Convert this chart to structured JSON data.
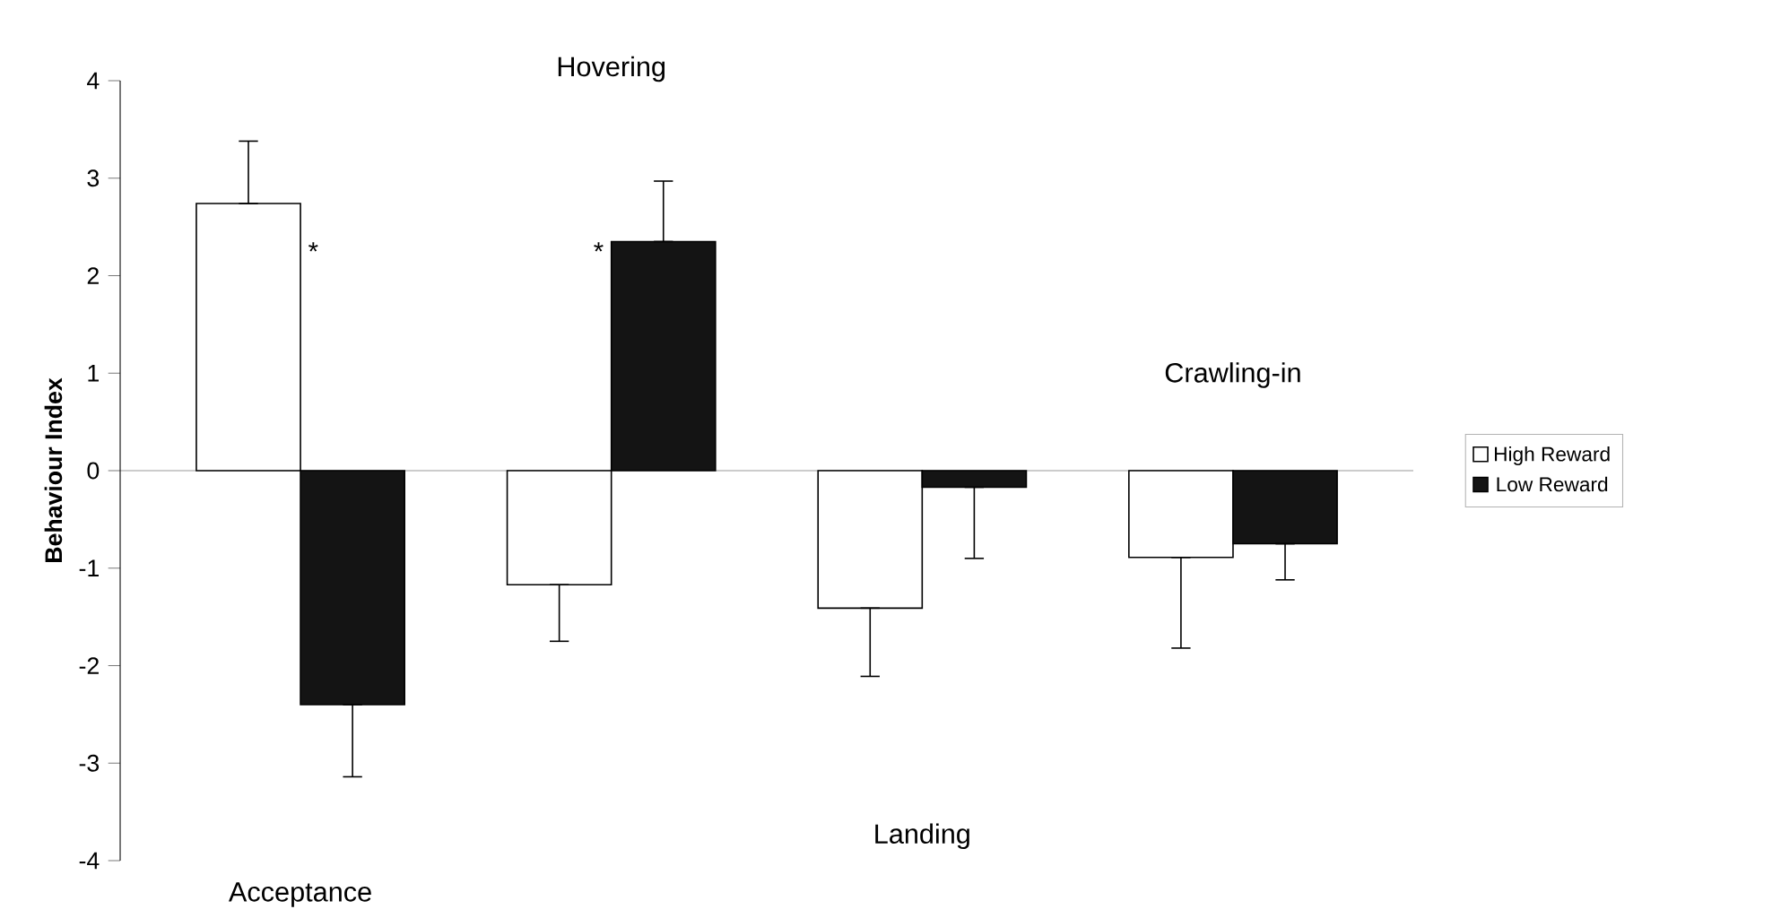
{
  "chart_data": {
    "type": "bar",
    "ylabel": "Behaviour Index",
    "categories": [
      "Acceptance",
      "Hovering",
      "Landing",
      "Crawling-in"
    ],
    "series": [
      {
        "name": "High Reward",
        "color": "#ffffff",
        "values": [
          2.74,
          -1.17,
          -1.41,
          -0.89
        ],
        "errors": [
          [
            2.74,
            3.38
          ],
          [
            -1.75,
            -1.17
          ],
          [
            -2.11,
            -1.41
          ],
          [
            -1.82,
            -0.89
          ]
        ]
      },
      {
        "name": "Low Reward",
        "color": "#141414",
        "values": [
          -2.4,
          2.35,
          -0.17,
          -0.75
        ],
        "errors": [
          [
            -3.14,
            -2.4
          ],
          [
            2.35,
            2.97
          ],
          [
            -0.9,
            -0.17
          ],
          [
            -1.12,
            -0.75
          ]
        ]
      }
    ],
    "ylim": [
      -4,
      4
    ],
    "yticks": [
      -4,
      -3,
      -2,
      -1,
      0,
      1,
      2,
      3,
      4
    ],
    "tick_labels": "y",
    "legend": "right",
    "annotations": [
      "*",
      "*"
    ]
  }
}
